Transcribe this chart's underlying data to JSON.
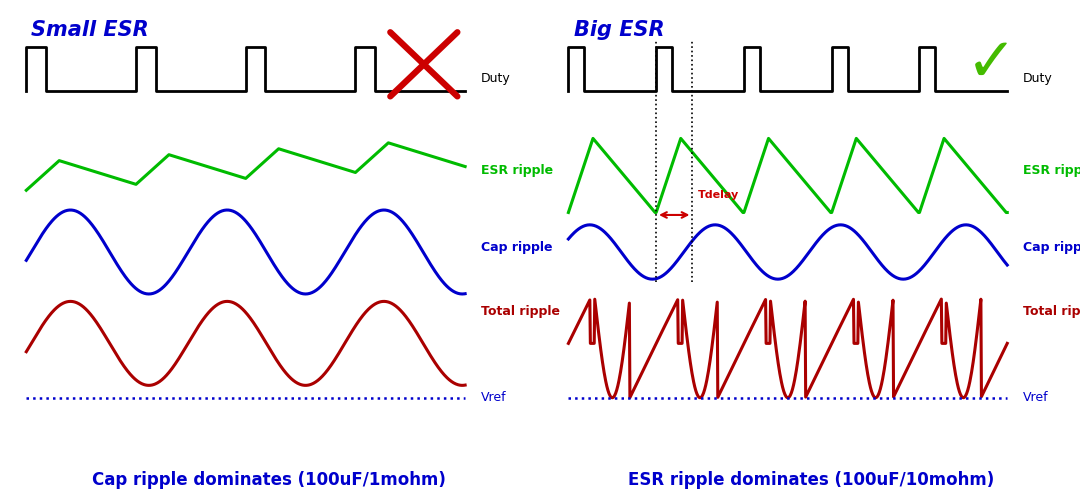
{
  "left_title": "Small ESR",
  "right_title": "Big ESR",
  "left_subtitle": "Cap ripple dominates (100uF/1mohm)",
  "right_subtitle": "ESR ripple dominates (100uF/10mohm)",
  "title_color": "#0000cc",
  "duty_label": "Duty",
  "esr_label": "ESR ripple",
  "cap_label": "Cap ripple",
  "total_label": "Total ripple",
  "vref_label": "Vref",
  "tdelay_label": "Tdelay",
  "duty_color": "#000000",
  "esr_color": "#00bb00",
  "cap_color": "#0000cc",
  "total_color": "#aa0000",
  "vref_color": "#0000cc",
  "tdelay_color": "#cc0000",
  "bg_color": "#ffffff",
  "subtitle_fontsize": 12,
  "title_fontsize": 15,
  "label_fontsize": 9
}
